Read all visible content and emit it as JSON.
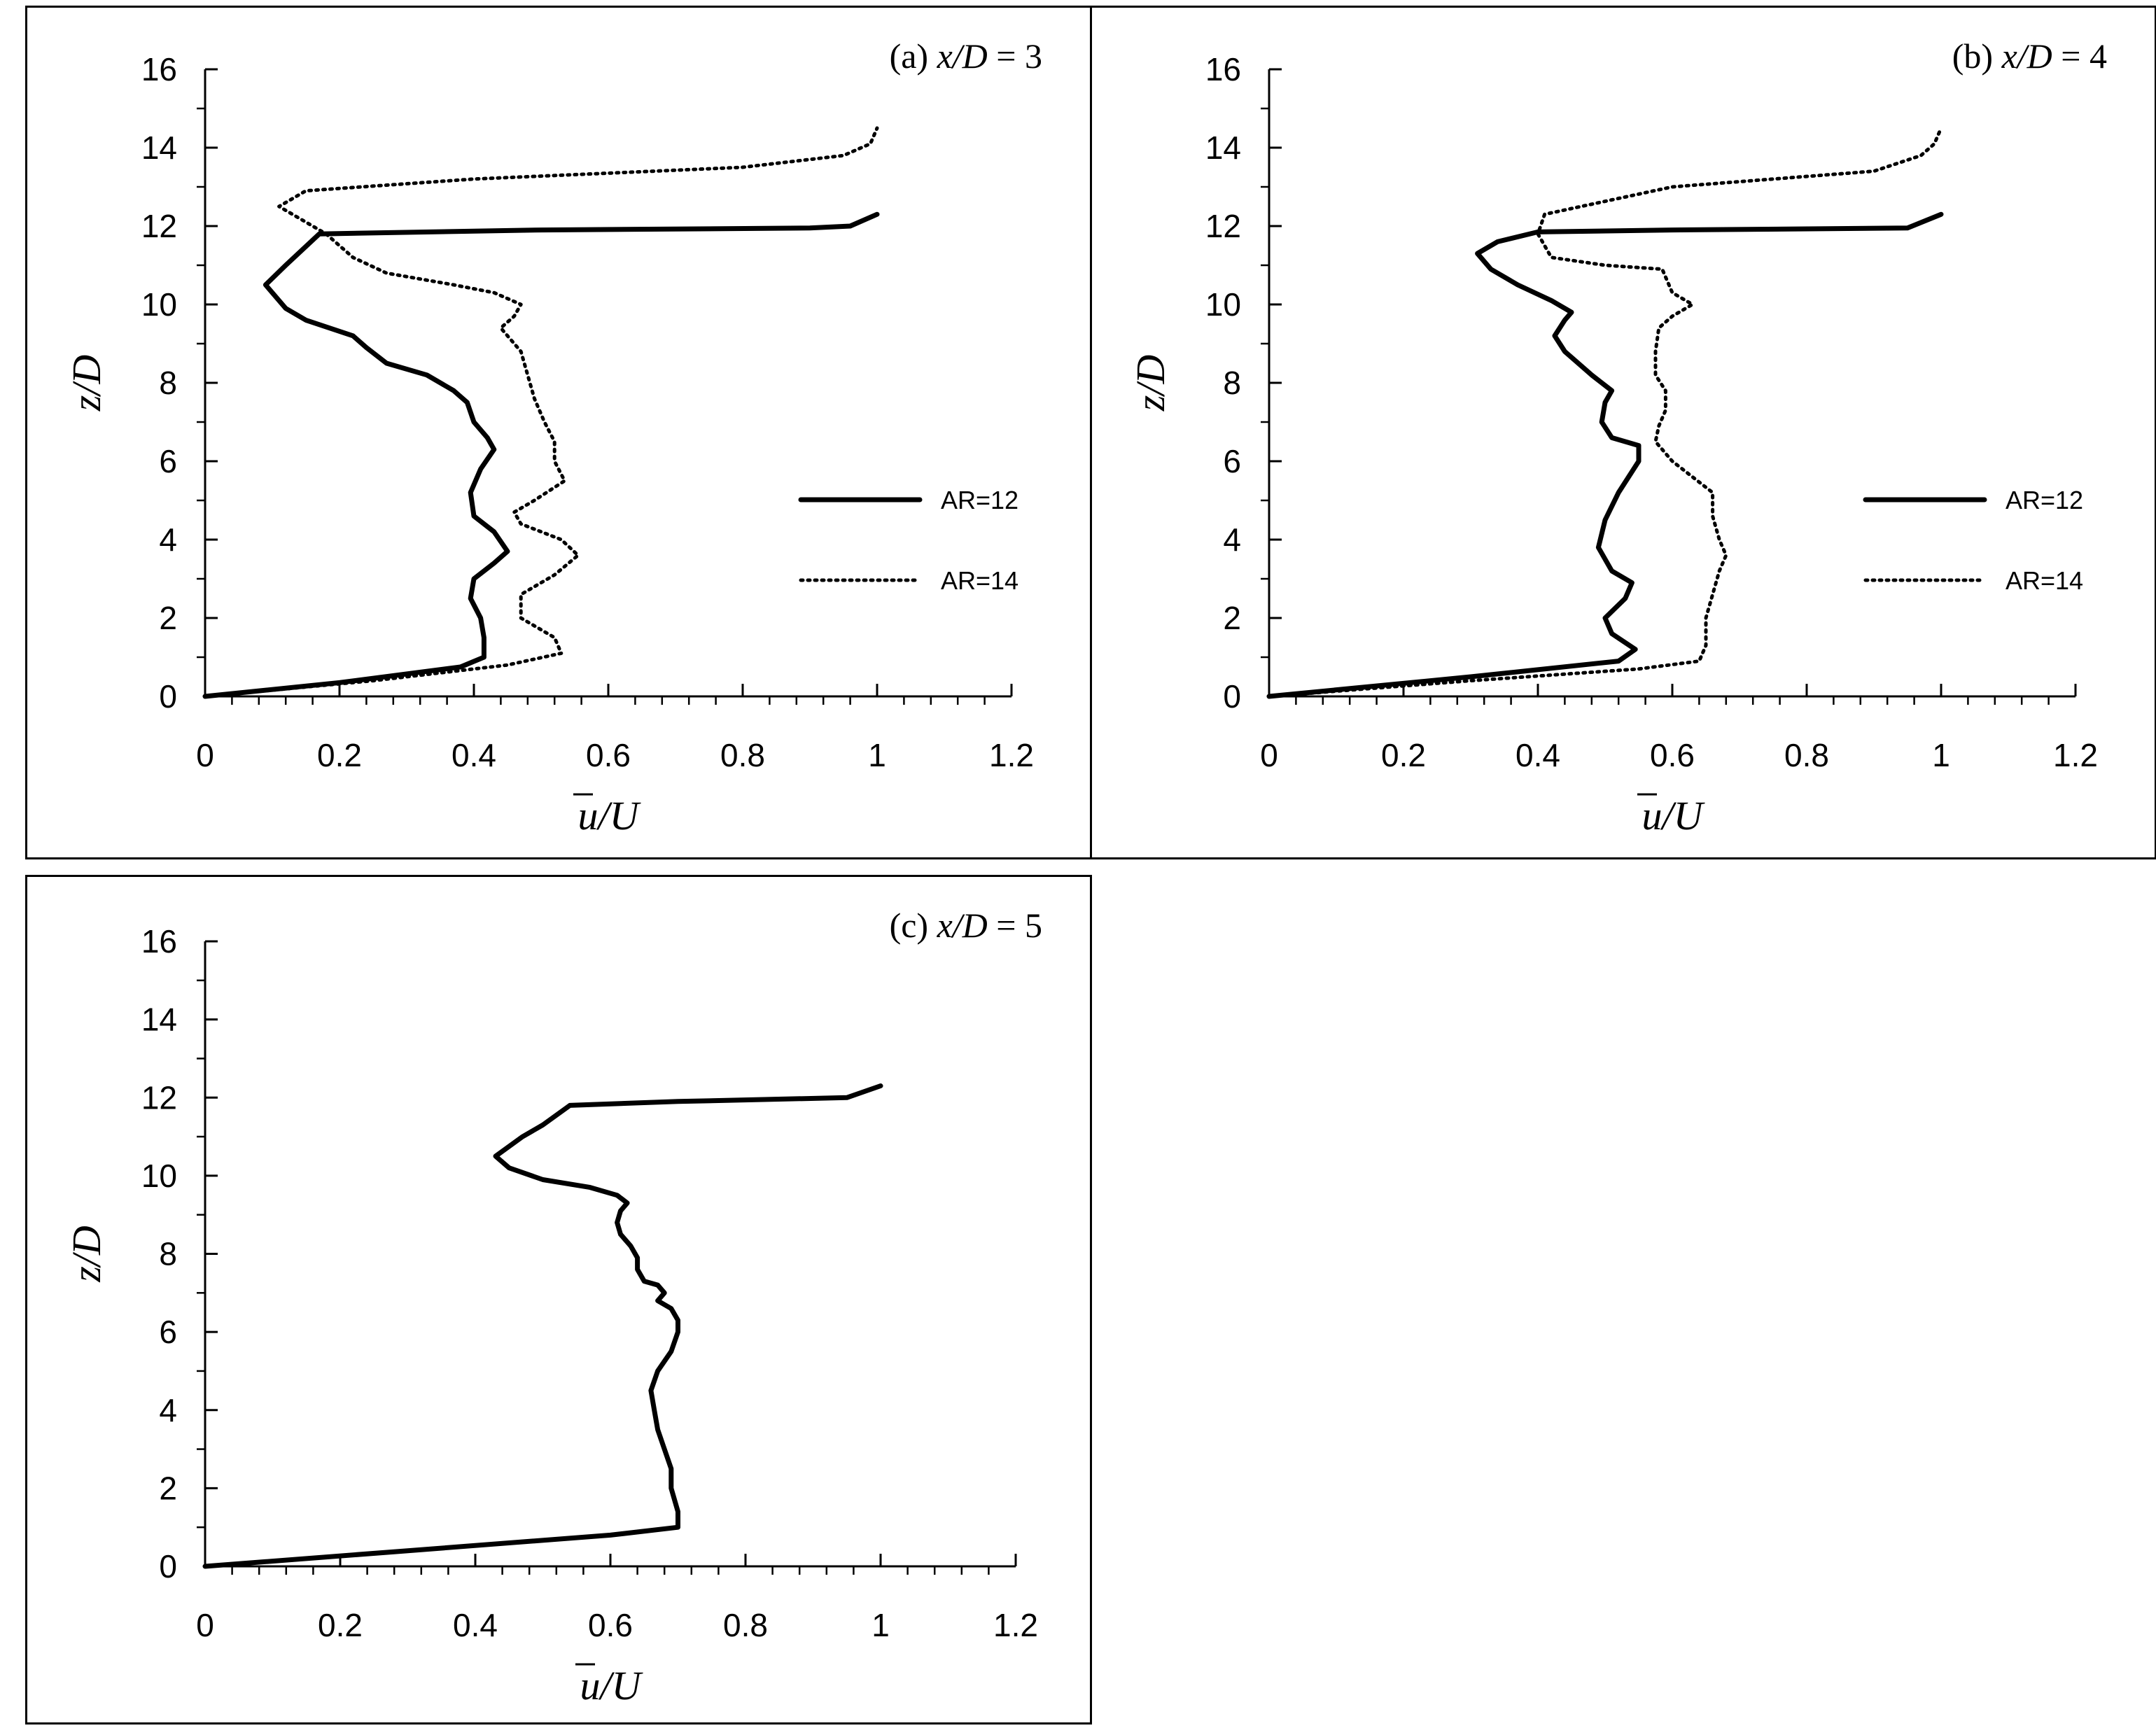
{
  "chart_data": [
    {
      "type": "line",
      "panel": "a",
      "title": "(a) x/D = 3",
      "title_prefix": "(a) ",
      "title_var": "x/D",
      "title_suffix": " = 3",
      "xlabel": "u/U",
      "ylabel": "z/D",
      "xlim": [
        0,
        1.2
      ],
      "ylim": [
        0,
        16
      ],
      "xticks": [
        "0",
        "0.2",
        "0.4",
        "0.6",
        "0.8",
        "1",
        "1.2"
      ],
      "yticks": [
        "0",
        "2",
        "4",
        "6",
        "8",
        "10",
        "12",
        "14",
        "16"
      ],
      "legend": {
        "position": "right",
        "entries": [
          "AR=12",
          "AR=14"
        ]
      },
      "series": [
        {
          "name": "AR=12",
          "style": "solid",
          "points": [
            [
              0,
              0
            ],
            [
              0.2,
              0.35
            ],
            [
              0.38,
              0.75
            ],
            [
              0.415,
              1.0
            ],
            [
              0.415,
              1.5
            ],
            [
              0.41,
              2.0
            ],
            [
              0.395,
              2.5
            ],
            [
              0.4,
              3.0
            ],
            [
              0.43,
              3.4
            ],
            [
              0.45,
              3.7
            ],
            [
              0.43,
              4.2
            ],
            [
              0.4,
              4.6
            ],
            [
              0.395,
              5.2
            ],
            [
              0.41,
              5.8
            ],
            [
              0.43,
              6.3
            ],
            [
              0.42,
              6.6
            ],
            [
              0.4,
              7.0
            ],
            [
              0.39,
              7.5
            ],
            [
              0.37,
              7.8
            ],
            [
              0.33,
              8.2
            ],
            [
              0.27,
              8.5
            ],
            [
              0.24,
              8.9
            ],
            [
              0.22,
              9.2
            ],
            [
              0.15,
              9.6
            ],
            [
              0.12,
              9.9
            ],
            [
              0.09,
              10.5
            ],
            [
              0.12,
              11.0
            ],
            [
              0.17,
              11.8
            ],
            [
              0.5,
              11.9
            ],
            [
              0.9,
              11.95
            ],
            [
              0.96,
              12.0
            ],
            [
              1.0,
              12.3
            ]
          ]
        },
        {
          "name": "AR=14",
          "style": "dotted",
          "points": [
            [
              0,
              0
            ],
            [
              0.25,
              0.4
            ],
            [
              0.45,
              0.8
            ],
            [
              0.53,
              1.1
            ],
            [
              0.52,
              1.5
            ],
            [
              0.47,
              2.0
            ],
            [
              0.47,
              2.6
            ],
            [
              0.52,
              3.1
            ],
            [
              0.555,
              3.6
            ],
            [
              0.53,
              4.0
            ],
            [
              0.47,
              4.4
            ],
            [
              0.46,
              4.7
            ],
            [
              0.49,
              5.0
            ],
            [
              0.535,
              5.5
            ],
            [
              0.52,
              6.0
            ],
            [
              0.52,
              6.5
            ],
            [
              0.505,
              7.0
            ],
            [
              0.49,
              7.6
            ],
            [
              0.48,
              8.2
            ],
            [
              0.47,
              8.8
            ],
            [
              0.44,
              9.4
            ],
            [
              0.46,
              9.7
            ],
            [
              0.47,
              10.0
            ],
            [
              0.43,
              10.3
            ],
            [
              0.37,
              10.5
            ],
            [
              0.27,
              10.8
            ],
            [
              0.22,
              11.2
            ],
            [
              0.18,
              11.8
            ],
            [
              0.11,
              12.5
            ],
            [
              0.15,
              12.9
            ],
            [
              0.4,
              13.2
            ],
            [
              0.8,
              13.5
            ],
            [
              0.95,
              13.8
            ],
            [
              0.99,
              14.1
            ],
            [
              1.0,
              14.5
            ]
          ]
        }
      ]
    },
    {
      "type": "line",
      "panel": "b",
      "title": "(b) x/D = 4",
      "title_prefix": "(b) ",
      "title_var": "x/D",
      "title_suffix": " = 4",
      "xlabel": "u/U",
      "ylabel": "z/D",
      "xlim": [
        0,
        1.2
      ],
      "ylim": [
        0,
        16
      ],
      "xticks": [
        "0",
        "0.2",
        "0.4",
        "0.6",
        "0.8",
        "1",
        "1.2"
      ],
      "yticks": [
        "0",
        "2",
        "4",
        "6",
        "8",
        "10",
        "12",
        "14",
        "16"
      ],
      "legend": {
        "position": "right",
        "entries": [
          "AR=12",
          "AR=14"
        ]
      },
      "series": [
        {
          "name": "AR=12",
          "style": "solid",
          "points": [
            [
              0,
              0
            ],
            [
              0.3,
              0.5
            ],
            [
              0.52,
              0.9
            ],
            [
              0.545,
              1.2
            ],
            [
              0.51,
              1.6
            ],
            [
              0.5,
              2.0
            ],
            [
              0.53,
              2.5
            ],
            [
              0.54,
              2.9
            ],
            [
              0.51,
              3.2
            ],
            [
              0.49,
              3.8
            ],
            [
              0.5,
              4.5
            ],
            [
              0.52,
              5.2
            ],
            [
              0.55,
              6.0
            ],
            [
              0.55,
              6.4
            ],
            [
              0.51,
              6.6
            ],
            [
              0.495,
              7.0
            ],
            [
              0.5,
              7.5
            ],
            [
              0.51,
              7.8
            ],
            [
              0.48,
              8.2
            ],
            [
              0.44,
              8.8
            ],
            [
              0.425,
              9.2
            ],
            [
              0.44,
              9.6
            ],
            [
              0.45,
              9.8
            ],
            [
              0.42,
              10.1
            ],
            [
              0.37,
              10.5
            ],
            [
              0.33,
              10.9
            ],
            [
              0.31,
              11.3
            ],
            [
              0.34,
              11.6
            ],
            [
              0.4,
              11.85
            ],
            [
              0.6,
              11.9
            ],
            [
              0.95,
              11.95
            ],
            [
              1.0,
              12.3
            ]
          ]
        },
        {
          "name": "AR=14",
          "style": "dotted",
          "points": [
            [
              0,
              0
            ],
            [
              0.3,
              0.4
            ],
            [
              0.55,
              0.7
            ],
            [
              0.64,
              0.9
            ],
            [
              0.65,
              1.3
            ],
            [
              0.65,
              2.0
            ],
            [
              0.66,
              2.6
            ],
            [
              0.67,
              3.2
            ],
            [
              0.68,
              3.6
            ],
            [
              0.67,
              4.0
            ],
            [
              0.66,
              4.6
            ],
            [
              0.66,
              5.2
            ],
            [
              0.63,
              5.6
            ],
            [
              0.6,
              6.0
            ],
            [
              0.59,
              6.2
            ],
            [
              0.575,
              6.5
            ],
            [
              0.58,
              6.9
            ],
            [
              0.59,
              7.3
            ],
            [
              0.59,
              7.8
            ],
            [
              0.575,
              8.2
            ],
            [
              0.575,
              8.8
            ],
            [
              0.58,
              9.4
            ],
            [
              0.6,
              9.7
            ],
            [
              0.63,
              10.0
            ],
            [
              0.6,
              10.3
            ],
            [
              0.59,
              10.7
            ],
            [
              0.585,
              10.9
            ],
            [
              0.5,
              11.0
            ],
            [
              0.42,
              11.2
            ],
            [
              0.4,
              11.8
            ],
            [
              0.41,
              12.3
            ],
            [
              0.6,
              13.0
            ],
            [
              0.9,
              13.4
            ],
            [
              0.97,
              13.8
            ],
            [
              0.99,
              14.1
            ],
            [
              1.0,
              14.5
            ]
          ]
        }
      ]
    },
    {
      "type": "line",
      "panel": "c",
      "title": "(c) x/D = 5",
      "title_prefix": "(c) ",
      "title_var": "x/D",
      "title_suffix": " = 5",
      "xlabel": "u/U",
      "ylabel": "z/D",
      "xlim": [
        0,
        1.2
      ],
      "ylim": [
        0,
        16
      ],
      "xticks": [
        "0",
        "0.2",
        "0.4",
        "0.6",
        "0.8",
        "1",
        "1.2"
      ],
      "yticks": [
        "0",
        "2",
        "4",
        "6",
        "8",
        "10",
        "12",
        "14",
        "16"
      ],
      "series": [
        {
          "points": [
            [
              0,
              0
            ],
            [
              0.3,
              0.4
            ],
            [
              0.6,
              0.8
            ],
            [
              0.7,
              1.0
            ],
            [
              0.7,
              1.4
            ],
            [
              0.69,
              2.0
            ],
            [
              0.69,
              2.5
            ],
            [
              0.68,
              3.0
            ],
            [
              0.67,
              3.5
            ],
            [
              0.665,
              4.0
            ],
            [
              0.66,
              4.5
            ],
            [
              0.67,
              5.0
            ],
            [
              0.69,
              5.5
            ],
            [
              0.7,
              6.0
            ],
            [
              0.7,
              6.3
            ],
            [
              0.69,
              6.6
            ],
            [
              0.67,
              6.8
            ],
            [
              0.68,
              7.0
            ],
            [
              0.67,
              7.2
            ],
            [
              0.65,
              7.3
            ],
            [
              0.64,
              7.6
            ],
            [
              0.64,
              7.9
            ],
            [
              0.63,
              8.2
            ],
            [
              0.615,
              8.5
            ],
            [
              0.61,
              8.8
            ],
            [
              0.615,
              9.1
            ],
            [
              0.625,
              9.3
            ],
            [
              0.61,
              9.5
            ],
            [
              0.57,
              9.7
            ],
            [
              0.5,
              9.9
            ],
            [
              0.45,
              10.2
            ],
            [
              0.43,
              10.5
            ],
            [
              0.47,
              11.0
            ],
            [
              0.5,
              11.3
            ],
            [
              0.54,
              11.8
            ],
            [
              0.7,
              11.9
            ],
            [
              0.95,
              12.0
            ],
            [
              1.0,
              12.3
            ]
          ]
        }
      ]
    }
  ]
}
